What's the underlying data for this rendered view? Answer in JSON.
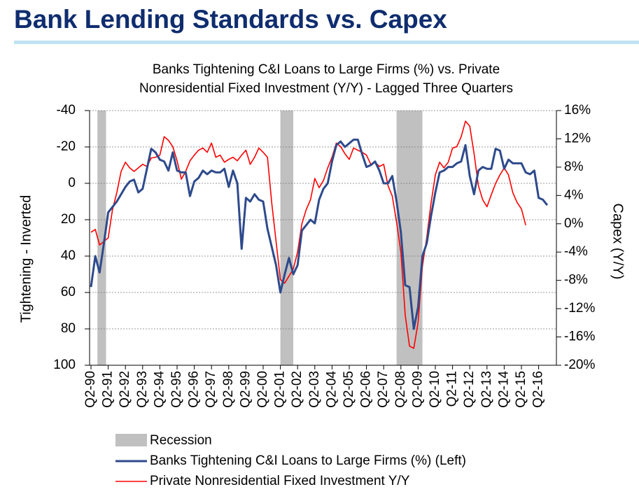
{
  "chart_data": {
    "type": "line",
    "header": "Bank Lending Standards vs. Capex",
    "title": "Banks Tightening C&I Loans to Large Firms (%)  vs. Private",
    "subtitle": "Nonresidential Fixed Investment (Y/Y) - Lagged Three Quarters",
    "ylabel": "Tightening - Inverted",
    "y2label": "Capex (Y/Y)",
    "ylim": [
      -40,
      100
    ],
    "y_inverted": true,
    "yticks": [
      -40,
      -20,
      0,
      20,
      40,
      60,
      80,
      100
    ],
    "y2lim": [
      16,
      -20
    ],
    "y2ticks": [
      {
        "value": 16,
        "label": "16%"
      },
      {
        "value": 12,
        "label": "12%"
      },
      {
        "value": 8,
        "label": "8%"
      },
      {
        "value": 4,
        "label": "4%"
      },
      {
        "value": 0,
        "label": "0%"
      },
      {
        "value": -4,
        "label": "-4%"
      },
      {
        "value": -8,
        "label": "-8%"
      },
      {
        "value": -12,
        "label": "-12%"
      },
      {
        "value": -16,
        "label": "-16%"
      },
      {
        "value": -20,
        "label": "-20%"
      }
    ],
    "grid": true,
    "recession_name": "Recession",
    "recession_color": "#c0c0c0",
    "recessions": [
      [
        1.5,
        3.5
      ],
      [
        44,
        47
      ],
      [
        71,
        77
      ]
    ],
    "categories": [
      "Q2-90",
      null,
      null,
      null,
      "Q2-91",
      null,
      null,
      null,
      "Q2-92",
      null,
      null,
      null,
      "Q2-93",
      null,
      null,
      null,
      "Q2-94",
      null,
      null,
      null,
      "Q2-95",
      null,
      null,
      null,
      "Q2-96",
      null,
      null,
      null,
      "Q2-97",
      null,
      null,
      null,
      "Q2-98",
      null,
      null,
      null,
      "Q2-99",
      null,
      null,
      null,
      "Q2-00",
      null,
      null,
      null,
      "Q2-01",
      null,
      null,
      null,
      "Q2-02",
      null,
      null,
      null,
      "Q2-03",
      null,
      null,
      null,
      "Q2-04",
      null,
      null,
      null,
      "Q2-05",
      null,
      null,
      null,
      "Q2-06",
      null,
      null,
      null,
      "Q2-07",
      null,
      null,
      null,
      "Q2-08",
      null,
      null,
      null,
      "Q2-09",
      null,
      null,
      null,
      "Q2-10",
      null,
      null,
      null,
      "Q2-11",
      null,
      null,
      null,
      "Q2-12",
      null,
      null,
      null,
      "Q2-13",
      null,
      null,
      null,
      "Q2-14",
      null,
      null,
      null,
      "Q2-15",
      null,
      null,
      null,
      "Q2-16",
      null,
      null
    ],
    "series": [
      {
        "name": "Banks Tightening C&I Loans to Large Firms (%) (Left)",
        "color": "#2e4a8c",
        "axis": "y",
        "values": [
          57,
          40,
          49,
          33,
          16,
          13,
          10,
          6,
          2,
          -1,
          -2,
          5,
          3,
          -8,
          -19,
          -17,
          -13,
          -12,
          -7,
          -17,
          -7,
          -6,
          -6,
          7,
          -1,
          -3,
          -7,
          -5,
          -7,
          -6,
          -6,
          -8,
          2,
          -7,
          0,
          36,
          8,
          10,
          6,
          9,
          10,
          25,
          35,
          45,
          60,
          50,
          41,
          50,
          45,
          26,
          23,
          20,
          22,
          9,
          3,
          0,
          -12,
          -21,
          -23,
          -20,
          -22,
          -24,
          -24,
          -16,
          -9,
          -10,
          -12,
          -7,
          0,
          0,
          -4,
          10,
          27,
          56,
          57,
          80,
          68,
          40,
          33,
          18,
          5,
          -6,
          -7,
          -9,
          -9,
          -11,
          -12,
          -21,
          -4,
          6,
          -7,
          -9,
          -8,
          -8,
          -19,
          -18,
          -8,
          -13,
          -11,
          -11,
          -11,
          -6,
          -5,
          -7,
          8,
          9,
          12
        ]
      },
      {
        "name": "Private Nonresidential Fixed Investment Y/Y",
        "color": "#ff0000",
        "axis": "y2",
        "values": [
          -1.2,
          -0.8,
          -3,
          -2.5,
          -2,
          2,
          4.4,
          7.4,
          8.7,
          7.9,
          7.4,
          7.9,
          8.4,
          8.1,
          9.3,
          9.4,
          9.7,
          12.3,
          11.8,
          10.9,
          8.9,
          6.3,
          7.4,
          8.9,
          9.7,
          10.4,
          10.7,
          10.1,
          11.4,
          9.4,
          9.7,
          8.7,
          9.1,
          9.4,
          8.9,
          9.7,
          10.4,
          8.4,
          9.4,
          10.7,
          10.1,
          9.4,
          2.9,
          -2.5,
          -7.9,
          -8.4,
          -7.4,
          -6.4,
          -4,
          0,
          2,
          3.4,
          6.4,
          5.1,
          6.1,
          7.9,
          9.4,
          11.4,
          10.9,
          9.9,
          9.1,
          10.7,
          10.4,
          10.1,
          9.7,
          8.4,
          8.7,
          8.1,
          8.4,
          5.4,
          3.9,
          0.2,
          -4,
          -12.9,
          -17.3,
          -17.6,
          -13.9,
          -6,
          -2,
          2.9,
          6.9,
          8.7,
          7.9,
          8.7,
          10.7,
          10.9,
          12.3,
          14.5,
          13.8,
          9.9,
          5.4,
          3.4,
          2.4,
          4.1,
          5.7,
          6.9,
          7.9,
          6.9,
          4.4,
          3.0,
          2.1,
          -0.2,
          null,
          null,
          null,
          null,
          null
        ]
      }
    ]
  }
}
